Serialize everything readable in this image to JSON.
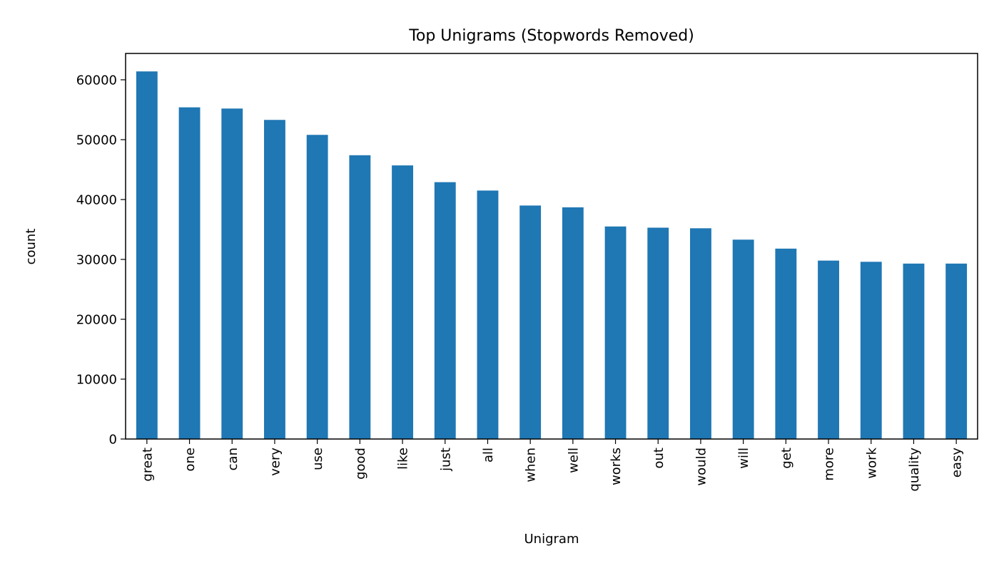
{
  "chart_data": {
    "type": "bar",
    "title": "Top Unigrams (Stopwords Removed)",
    "xlabel": "Unigram",
    "ylabel": "count",
    "categories": [
      "great",
      "one",
      "can",
      "very",
      "use",
      "good",
      "like",
      "just",
      "all",
      "when",
      "well",
      "works",
      "out",
      "would",
      "will",
      "get",
      "more",
      "work",
      "quality",
      "easy"
    ],
    "values": [
      61400,
      55400,
      55200,
      53300,
      50800,
      47400,
      45700,
      42900,
      41500,
      39000,
      38700,
      35500,
      35300,
      35200,
      33300,
      31800,
      29800,
      29600,
      29300,
      29300
    ],
    "ylim": [
      0,
      64400
    ],
    "yticks": [
      0,
      10000,
      20000,
      30000,
      40000,
      50000,
      60000
    ],
    "bar_color": "#1f77b4",
    "grid": false,
    "legend": "none"
  }
}
